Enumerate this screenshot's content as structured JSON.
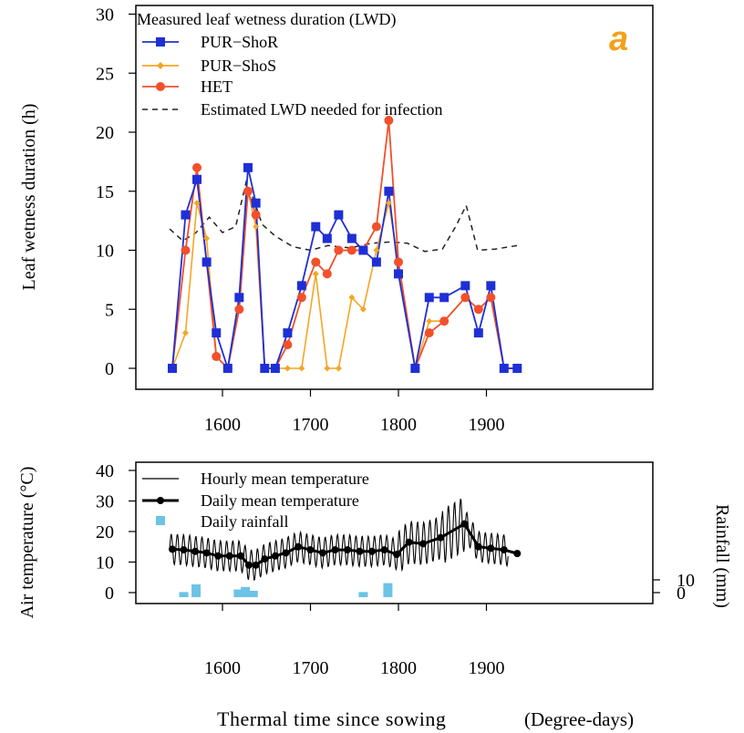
{
  "panel_label": "a",
  "footer": {
    "xlabel": "Thermal time since sowing",
    "xunit": "(Degree-days)"
  },
  "colors": {
    "shor": "#1f2fd6",
    "shos": "#f5a623",
    "het": "#f2502a",
    "est": "#222222",
    "rain": "#6cc3e6",
    "temp": "#000000"
  },
  "chart_data": [
    {
      "type": "line",
      "title": "",
      "legend_title": "Measured leaf wetness duration (LWD)",
      "ylabel": "Leaf wetness duration (h)",
      "xlabel": "",
      "xlim": [
        1530,
        1945
      ],
      "ylim": [
        -1.5,
        30
      ],
      "xticks": [
        1600,
        1700,
        1800,
        1900
      ],
      "yticks": [
        0,
        5,
        10,
        15,
        20,
        25,
        30
      ],
      "legend_position": "top-left",
      "x": [
        1543,
        1558,
        1571,
        1582,
        1593,
        1606,
        1619,
        1629,
        1638,
        1648,
        1660,
        1674,
        1690,
        1706,
        1719,
        1732,
        1747,
        1760,
        1775,
        1789,
        1800,
        1819,
        1835,
        1852,
        1876,
        1891,
        1905,
        1920,
        1935
      ],
      "series": [
        {
          "name": "PUR−ShoR",
          "values": [
            0,
            13,
            16,
            9,
            3,
            0,
            6,
            17,
            14,
            0,
            0,
            3,
            7,
            12,
            11,
            13,
            11,
            10,
            9,
            15,
            8,
            0,
            6,
            6,
            7,
            3,
            7,
            0,
            0
          ]
        },
        {
          "name": "PUR−ShoS",
          "values": [
            0,
            3,
            14,
            11,
            1,
            0,
            5,
            15,
            12,
            0,
            0,
            0,
            0,
            8,
            0,
            0,
            6,
            5,
            10,
            14,
            9,
            0,
            4,
            4,
            6,
            5,
            6,
            0,
            0
          ]
        },
        {
          "name": "HET",
          "values": [
            0,
            10,
            17,
            9,
            1,
            0,
            5,
            15,
            13,
            0,
            0,
            2,
            6,
            9,
            8,
            10,
            10,
            10,
            12,
            21,
            9,
            0,
            3,
            4,
            6,
            5,
            6,
            0,
            0
          ]
        },
        {
          "name": "Estimated LWD needed for infection",
          "style": "dashed",
          "x": [
            1540,
            1555,
            1570,
            1585,
            1600,
            1615,
            1627,
            1636,
            1645,
            1660,
            1680,
            1700,
            1720,
            1745,
            1770,
            1790,
            1810,
            1830,
            1850,
            1865,
            1877,
            1890,
            1910,
            1935
          ],
          "values": [
            11.8,
            10.8,
            11.5,
            12.8,
            11.5,
            12.0,
            15.8,
            14.2,
            12.2,
            11.2,
            10.3,
            10.0,
            10.4,
            10.2,
            10.6,
            10.7,
            10.6,
            9.9,
            10.1,
            12.0,
            13.8,
            10.0,
            10.1,
            10.4
          ]
        }
      ]
    },
    {
      "type": "line",
      "title": "",
      "ylabel": "Air temperature (°C)",
      "y2label": "Rainfall (mm)",
      "xlabel": "",
      "xlim": [
        1530,
        1945
      ],
      "ylim": [
        -3,
        40
      ],
      "xticks": [
        1600,
        1700,
        1800,
        1900
      ],
      "yticks": [
        0,
        10,
        20,
        30,
        40
      ],
      "y2ticks": [
        0,
        10
      ],
      "legend_position": "top-left",
      "series": [
        {
          "name": "Hourly mean temperature",
          "x": [
            1540,
            1943
          ],
          "period": 7,
          "amplitude": 5,
          "note_values": "oscillates around daily mean"
        },
        {
          "name": "Daily mean temperature",
          "x": [
            1543,
            1556,
            1569,
            1582,
            1595,
            1608,
            1621,
            1630,
            1638,
            1648,
            1660,
            1672,
            1686,
            1700,
            1714,
            1728,
            1742,
            1756,
            1770,
            1784,
            1798,
            1812,
            1828,
            1848,
            1875,
            1891,
            1905,
            1920,
            1935
          ],
          "values": [
            14.2,
            14.0,
            13.5,
            13.0,
            12.0,
            12.0,
            12.0,
            9.0,
            9.0,
            11.0,
            12.0,
            13.0,
            15.0,
            14.0,
            13.0,
            14.0,
            14.0,
            13.5,
            13.5,
            14.0,
            12.5,
            16.5,
            16.0,
            18.0,
            22.5,
            15.0,
            14.5,
            14.0,
            12.8
          ]
        },
        {
          "name": "Daily rainfall",
          "type": "bar",
          "x": [
            1556,
            1570,
            1618,
            1626,
            1635,
            1760,
            1788
          ],
          "values": [
            2,
            5,
            3,
            4,
            2.5,
            2,
            5.5
          ]
        }
      ]
    }
  ]
}
